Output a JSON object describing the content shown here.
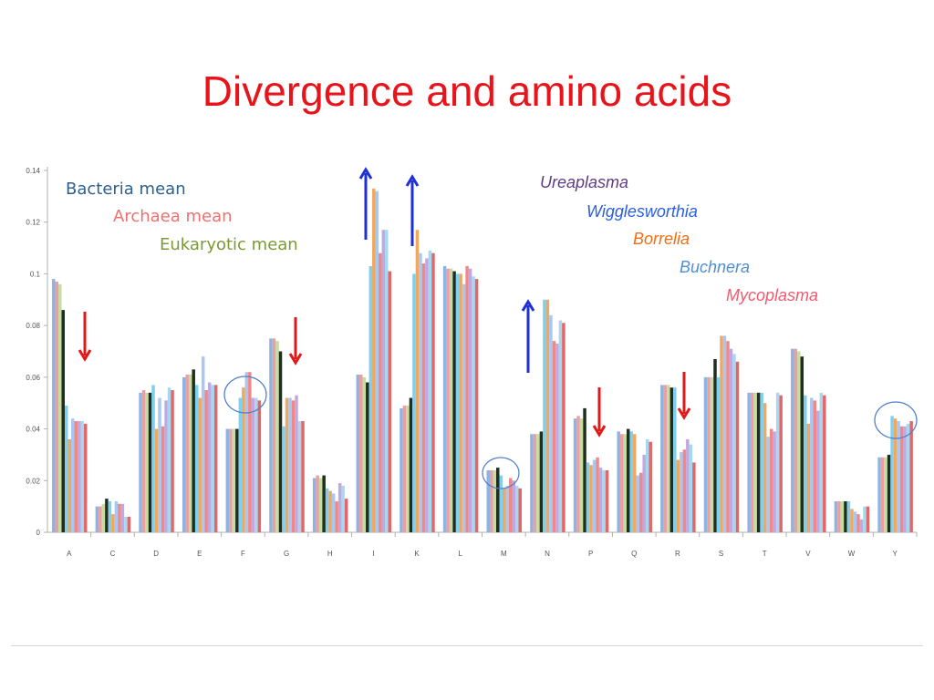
{
  "slide": {
    "title": "Divergence and amino acids"
  },
  "chart_data": {
    "type": "bar",
    "categories": [
      "A",
      "C",
      "D",
      "E",
      "F",
      "G",
      "H",
      "I",
      "K",
      "L",
      "M",
      "N",
      "P",
      "Q",
      "R",
      "S",
      "T",
      "V",
      "W",
      "Y"
    ],
    "ylim": [
      0,
      0.14
    ],
    "yticks": [
      "0.14",
      "0.12",
      "0.1",
      "0.08",
      "0.06",
      "0.04",
      "0.02",
      "0"
    ],
    "grid": false,
    "series": [
      {
        "name": "Bacteria mean",
        "color": "#2b5f8e"
      },
      {
        "name": "Archaea mean",
        "color": "#f07070"
      },
      {
        "name": "Eukaryotic mean",
        "color": "#7a9a36"
      },
      {
        "name": "Ureaplasma",
        "color": "#5e3c83"
      },
      {
        "name": "Wigglesworthia",
        "color": "#2a5fe0"
      },
      {
        "name": "Borrelia",
        "color": "#ef6e14"
      },
      {
        "name": "Buchnera",
        "color": "#4f8fd6"
      },
      {
        "name": "Mycoplasma",
        "color": "#f05a6e"
      }
    ],
    "bar_palette": [
      "#8fb4e3",
      "#e8a0a4",
      "#c8dba0",
      "#1f2f1f",
      "#7ed0f0",
      "#f0a860",
      "#a8c8f0",
      "#f08888",
      "#c0a8e0",
      "#a8d8f0",
      "#e06868"
    ],
    "values": [
      [
        0.098,
        0.097,
        0.096,
        0.086,
        0.049,
        0.036,
        0.044,
        0.043,
        0.043,
        0.043,
        0.042
      ],
      [
        0.01,
        0.01,
        0.011,
        0.013,
        0.012,
        0.007,
        0.012,
        0.011,
        0.011,
        0.006,
        0.006
      ],
      [
        0.054,
        0.055,
        0.054,
        0.054,
        0.057,
        0.04,
        0.052,
        0.041,
        0.051,
        0.056,
        0.055
      ],
      [
        0.06,
        0.061,
        0.061,
        0.063,
        0.057,
        0.052,
        0.068,
        0.055,
        0.058,
        0.057,
        0.057
      ],
      [
        0.04,
        0.04,
        0.04,
        0.04,
        0.052,
        0.056,
        0.062,
        0.062,
        0.052,
        0.052,
        0.051
      ],
      [
        0.075,
        0.075,
        0.074,
        0.07,
        0.041,
        0.052,
        0.052,
        0.051,
        0.053,
        0.043,
        0.043
      ],
      [
        0.021,
        0.022,
        0.021,
        0.022,
        0.017,
        0.016,
        0.015,
        0.012,
        0.019,
        0.018,
        0.013
      ],
      [
        0.061,
        0.061,
        0.06,
        0.058,
        0.103,
        0.133,
        0.132,
        0.108,
        0.117,
        0.117,
        0.101
      ],
      [
        0.048,
        0.049,
        0.049,
        0.052,
        0.1,
        0.117,
        0.108,
        0.104,
        0.106,
        0.109,
        0.108
      ],
      [
        0.103,
        0.102,
        0.102,
        0.101,
        0.1,
        0.1,
        0.096,
        0.103,
        0.102,
        0.099,
        0.098
      ],
      [
        0.024,
        0.024,
        0.024,
        0.025,
        0.022,
        0.017,
        0.018,
        0.021,
        0.02,
        0.018,
        0.017
      ],
      [
        0.038,
        0.038,
        0.038,
        0.039,
        0.09,
        0.09,
        0.084,
        0.074,
        0.073,
        0.082,
        0.081
      ],
      [
        0.044,
        0.045,
        0.044,
        0.048,
        0.027,
        0.026,
        0.028,
        0.029,
        0.025,
        0.024,
        0.024
      ],
      [
        0.039,
        0.038,
        0.038,
        0.04,
        0.039,
        0.038,
        0.022,
        0.023,
        0.03,
        0.036,
        0.035
      ],
      [
        0.057,
        0.057,
        0.057,
        0.056,
        0.056,
        0.028,
        0.031,
        0.032,
        0.036,
        0.034,
        0.027
      ],
      [
        0.06,
        0.06,
        0.06,
        0.067,
        0.06,
        0.076,
        0.076,
        0.074,
        0.071,
        0.069,
        0.066
      ],
      [
        0.054,
        0.054,
        0.054,
        0.054,
        0.054,
        0.05,
        0.037,
        0.04,
        0.039,
        0.054,
        0.053
      ],
      [
        0.071,
        0.071,
        0.07,
        0.068,
        0.053,
        0.042,
        0.052,
        0.051,
        0.047,
        0.054,
        0.053
      ],
      [
        0.012,
        0.012,
        0.012,
        0.012,
        0.012,
        0.009,
        0.008,
        0.007,
        0.005,
        0.01,
        0.01
      ],
      [
        0.029,
        0.029,
        0.029,
        0.03,
        0.045,
        0.044,
        0.043,
        0.041,
        0.041,
        0.042,
        0.043
      ]
    ],
    "annotations": {
      "up_arrows": [
        "I",
        "K",
        "N"
      ],
      "down_arrows": [
        "A",
        "G",
        "P",
        "R"
      ],
      "circled": [
        "F",
        "M",
        "Y"
      ]
    }
  }
}
